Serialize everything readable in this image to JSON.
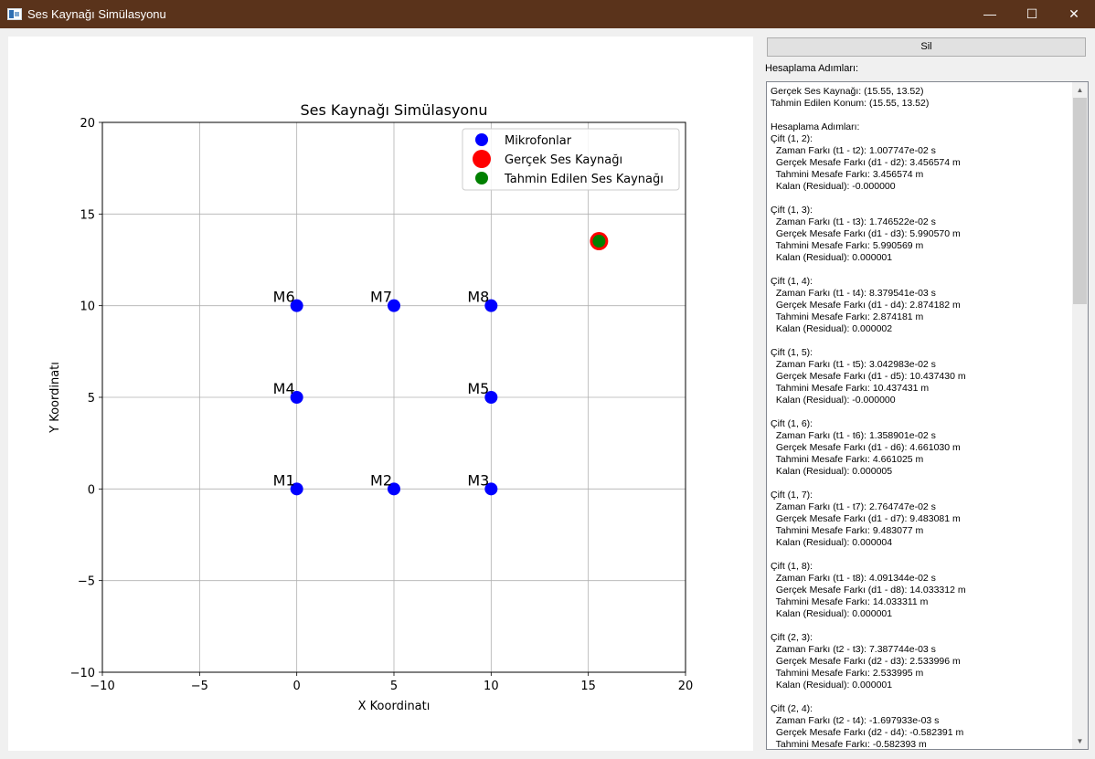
{
  "window": {
    "title": "Ses Kaynağı Simülasyonu",
    "controls": {
      "minimize": "—",
      "maximize": "☐",
      "close": "✕"
    }
  },
  "side_panel": {
    "clear_button": "Sil",
    "steps_label": "Hesaplama Adımları:",
    "log_lines": [
      "Gerçek Ses Kaynağı: (15.55, 13.52)",
      "Tahmin Edilen Konum: (15.55, 13.52)",
      "",
      "Hesaplama Adımları:",
      "Çift (1, 2):",
      "  Zaman Farkı (t1 - t2): 1.007747e-02 s",
      "  Gerçek Mesafe Farkı (d1 - d2): 3.456574 m",
      "  Tahmini Mesafe Farkı: 3.456574 m",
      "  Kalan (Residual): -0.000000",
      "",
      "Çift (1, 3):",
      "  Zaman Farkı (t1 - t3): 1.746522e-02 s",
      "  Gerçek Mesafe Farkı (d1 - d3): 5.990570 m",
      "  Tahmini Mesafe Farkı: 5.990569 m",
      "  Kalan (Residual): 0.000001",
      "",
      "Çift (1, 4):",
      "  Zaman Farkı (t1 - t4): 8.379541e-03 s",
      "  Gerçek Mesafe Farkı (d1 - d4): 2.874182 m",
      "  Tahmini Mesafe Farkı: 2.874181 m",
      "  Kalan (Residual): 0.000002",
      "",
      "Çift (1, 5):",
      "  Zaman Farkı (t1 - t5): 3.042983e-02 s",
      "  Gerçek Mesafe Farkı (d1 - d5): 10.437430 m",
      "  Tahmini Mesafe Farkı: 10.437431 m",
      "  Kalan (Residual): -0.000000",
      "",
      "Çift (1, 6):",
      "  Zaman Farkı (t1 - t6): 1.358901e-02 s",
      "  Gerçek Mesafe Farkı (d1 - d6): 4.661030 m",
      "  Tahmini Mesafe Farkı: 4.661025 m",
      "  Kalan (Residual): 0.000005",
      "",
      "Çift (1, 7):",
      "  Zaman Farkı (t1 - t7): 2.764747e-02 s",
      "  Gerçek Mesafe Farkı (d1 - d7): 9.483081 m",
      "  Tahmini Mesafe Farkı: 9.483077 m",
      "  Kalan (Residual): 0.000004",
      "",
      "Çift (1, 8):",
      "  Zaman Farkı (t1 - t8): 4.091344e-02 s",
      "  Gerçek Mesafe Farkı (d1 - d8): 14.033312 m",
      "  Tahmini Mesafe Farkı: 14.033311 m",
      "  Kalan (Residual): 0.000001",
      "",
      "Çift (2, 3):",
      "  Zaman Farkı (t2 - t3): 7.387744e-03 s",
      "  Gerçek Mesafe Farkı (d2 - d3): 2.533996 m",
      "  Tahmini Mesafe Farkı: 2.533995 m",
      "  Kalan (Residual): 0.000001",
      "",
      "Çift (2, 4):",
      "  Zaman Farkı (t2 - t4): -1.697933e-03 s",
      "  Gerçek Mesafe Farkı (d2 - d4): -0.582391 m",
      "  Tahmini Mesafe Farkı: -0.582393 m"
    ]
  },
  "chart_data": {
    "type": "scatter",
    "title": "Ses Kaynağı Simülasyonu",
    "xlabel": "X Koordinatı",
    "ylabel": "Y Koordinatı",
    "xlim": [
      -10,
      20
    ],
    "ylim": [
      -10,
      20
    ],
    "xticks": [
      -10,
      -5,
      0,
      5,
      10,
      15,
      20
    ],
    "yticks": [
      -10,
      -5,
      0,
      5,
      10,
      15,
      20
    ],
    "grid": true,
    "legend_position": "top-right",
    "series": [
      {
        "name": "Mikrofonlar",
        "color": "#0000ff",
        "points": [
          {
            "label": "M1",
            "x": 0,
            "y": 0
          },
          {
            "label": "M2",
            "x": 5,
            "y": 0
          },
          {
            "label": "M3",
            "x": 10,
            "y": 0
          },
          {
            "label": "M4",
            "x": 0,
            "y": 5
          },
          {
            "label": "M5",
            "x": 10,
            "y": 5
          },
          {
            "label": "M6",
            "x": 0,
            "y": 10
          },
          {
            "label": "M7",
            "x": 5,
            "y": 10
          },
          {
            "label": "M8",
            "x": 10,
            "y": 10
          }
        ]
      },
      {
        "name": "Gerçek Ses Kaynağı",
        "color": "#ff0000",
        "points": [
          {
            "x": 15.55,
            "y": 13.52
          }
        ]
      },
      {
        "name": "Tahmin Edilen Ses Kaynağı",
        "color": "#008000",
        "points": [
          {
            "x": 15.55,
            "y": 13.52
          }
        ]
      }
    ]
  }
}
